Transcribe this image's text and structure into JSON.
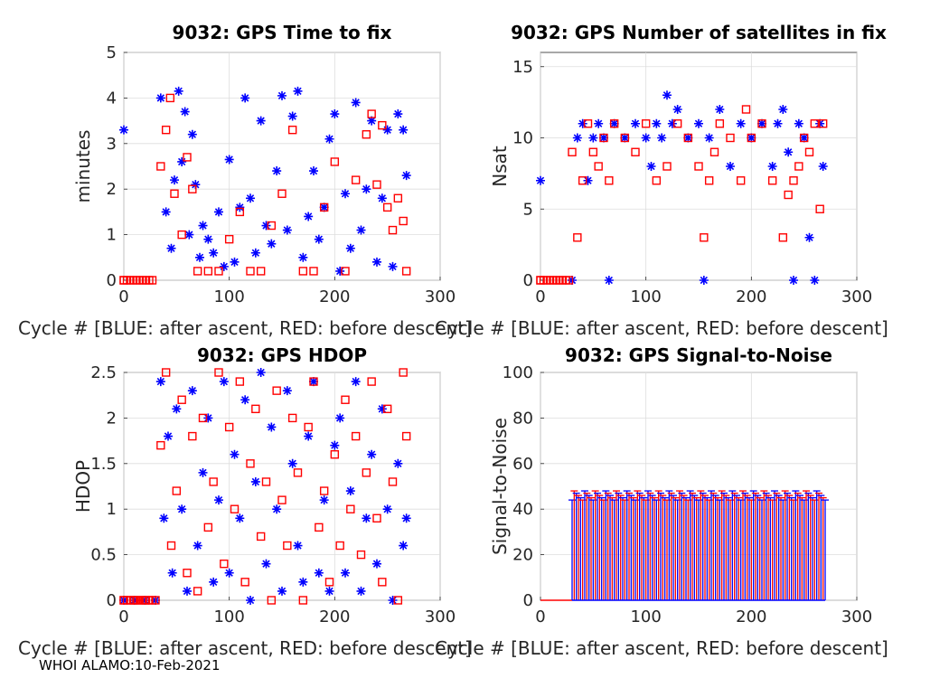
{
  "figure": {
    "footer": "WHOI ALAMO:10-Feb-2021",
    "colors": {
      "after_ascent": "#0000ff",
      "before_descent": "#ff0000",
      "grid": "#dddddd",
      "axis": "#262626"
    }
  },
  "chart_data": [
    {
      "id": "ttf",
      "type": "scatter",
      "title": "9032: GPS Time to fix",
      "xlabel": "Cycle #  [BLUE: after ascent, RED: before descent]",
      "ylabel": "minutes",
      "xlim": [
        0,
        300
      ],
      "ylim": [
        0,
        5
      ],
      "xticks": [
        0,
        100,
        200,
        300
      ],
      "yticks": [
        0,
        1,
        2,
        3,
        4,
        5
      ],
      "ytick_labels": [
        "0",
        "1",
        "2",
        "3",
        "4",
        "5"
      ],
      "series": [
        {
          "name": "after ascent",
          "marker": "asterisk",
          "color": "#0000ff",
          "x": [
            0,
            35,
            40,
            45,
            48,
            52,
            55,
            58,
            62,
            65,
            68,
            72,
            75,
            80,
            85,
            90,
            95,
            100,
            105,
            110,
            115,
            120,
            125,
            130,
            135,
            140,
            145,
            150,
            155,
            160,
            165,
            170,
            175,
            180,
            185,
            190,
            195,
            200,
            205,
            210,
            215,
            220,
            225,
            230,
            235,
            240,
            245,
            250,
            255,
            260,
            265,
            268
          ],
          "y": [
            3.3,
            4.0,
            1.5,
            0.7,
            2.2,
            4.15,
            2.6,
            3.7,
            1.0,
            3.2,
            2.1,
            0.5,
            1.2,
            0.9,
            0.6,
            1.5,
            0.3,
            2.65,
            0.4,
            1.6,
            4.0,
            1.8,
            0.6,
            3.5,
            1.2,
            0.8,
            2.4,
            4.05,
            1.1,
            3.6,
            4.15,
            0.5,
            1.4,
            2.4,
            0.9,
            1.6,
            3.1,
            3.65,
            0.2,
            1.9,
            0.7,
            3.9,
            1.1,
            2.0,
            3.5,
            0.4,
            1.8,
            3.3,
            0.3,
            3.65,
            3.3,
            2.3
          ]
        },
        {
          "name": "before descent",
          "marker": "square",
          "color": "#ff0000",
          "x": [
            0,
            35,
            40,
            44,
            48,
            55,
            60,
            65,
            70,
            80,
            90,
            100,
            110,
            120,
            130,
            140,
            150,
            160,
            170,
            180,
            190,
            200,
            210,
            220,
            230,
            235,
            240,
            245,
            250,
            255,
            260,
            265,
            268
          ],
          "y": [
            0.0,
            2.5,
            3.3,
            4.0,
            1.9,
            1.0,
            2.7,
            2.0,
            0.2,
            0.2,
            0.2,
            0.9,
            1.5,
            0.2,
            0.2,
            1.2,
            1.9,
            3.3,
            0.2,
            0.2,
            1.6,
            2.6,
            0.2,
            2.2,
            3.2,
            3.65,
            2.1,
            3.4,
            1.6,
            1.1,
            1.8,
            1.3,
            0.2
          ]
        }
      ]
    },
    {
      "id": "nsat",
      "type": "scatter",
      "title": "9032: GPS Number of satellites in fix",
      "xlabel": "Cycle #  [BLUE: after ascent, RED: before descent]",
      "ylabel": "Nsat",
      "xlim": [
        0,
        300
      ],
      "ylim": [
        0,
        16
      ],
      "xticks": [
        0,
        100,
        200,
        300
      ],
      "yticks": [
        0,
        5,
        10,
        15
      ],
      "ytick_labels": [
        "0",
        "5",
        "10",
        "15"
      ],
      "series": [
        {
          "name": "after ascent",
          "marker": "asterisk",
          "color": "#0000ff",
          "x": [
            0,
            30,
            35,
            40,
            45,
            50,
            55,
            60,
            65,
            70,
            80,
            90,
            100,
            105,
            110,
            115,
            120,
            125,
            130,
            140,
            150,
            155,
            160,
            170,
            180,
            190,
            200,
            210,
            220,
            225,
            230,
            235,
            240,
            245,
            250,
            255,
            260,
            265,
            268
          ],
          "y": [
            7,
            0,
            10,
            11,
            7,
            10,
            11,
            10,
            0,
            11,
            10,
            11,
            10,
            8,
            11,
            10,
            13,
            11,
            12,
            10,
            11,
            0,
            10,
            12,
            8,
            11,
            10,
            11,
            8,
            11,
            12,
            9,
            0,
            11,
            10,
            3,
            0,
            11,
            8
          ]
        },
        {
          "name": "before descent",
          "marker": "square",
          "color": "#ff0000",
          "x": [
            0,
            30,
            35,
            40,
            45,
            50,
            55,
            60,
            65,
            70,
            80,
            90,
            100,
            110,
            120,
            130,
            140,
            150,
            155,
            160,
            165,
            170,
            180,
            190,
            195,
            200,
            210,
            220,
            230,
            235,
            240,
            245,
            250,
            255,
            260,
            265,
            268
          ],
          "y": [
            0,
            9,
            3,
            7,
            11,
            9,
            8,
            10,
            7,
            11,
            10,
            9,
            11,
            7,
            8,
            11,
            10,
            8,
            3,
            7,
            9,
            11,
            10,
            7,
            12,
            10,
            11,
            7,
            3,
            6,
            7,
            8,
            10,
            9,
            11,
            5,
            11
          ]
        }
      ]
    },
    {
      "id": "hdop",
      "type": "scatter",
      "title": "9032: GPS HDOP",
      "xlabel": "Cycle #  [BLUE: after ascent, RED: before descent]",
      "ylabel": "HDOP",
      "xlim": [
        0,
        300
      ],
      "ylim": [
        0,
        2.5
      ],
      "xticks": [
        0,
        100,
        200,
        300
      ],
      "yticks": [
        0,
        0.5,
        1,
        1.5,
        2,
        2.5
      ],
      "ytick_labels": [
        "0",
        "0.5",
        "1",
        "1.5",
        "2",
        "2.5"
      ],
      "series": [
        {
          "name": "after ascent",
          "marker": "asterisk",
          "color": "#0000ff",
          "x": [
            0,
            10,
            20,
            30,
            35,
            38,
            42,
            46,
            50,
            55,
            60,
            65,
            70,
            75,
            80,
            85,
            90,
            95,
            100,
            105,
            110,
            115,
            120,
            125,
            130,
            135,
            140,
            145,
            150,
            155,
            160,
            165,
            170,
            175,
            180,
            185,
            190,
            195,
            200,
            205,
            210,
            215,
            220,
            225,
            230,
            235,
            240,
            245,
            250,
            255,
            260,
            265,
            268
          ],
          "y": [
            0.0,
            0.0,
            0.0,
            0.0,
            2.4,
            0.9,
            1.8,
            0.3,
            2.1,
            1.0,
            0.1,
            2.3,
            0.6,
            1.4,
            2.0,
            0.2,
            1.1,
            2.4,
            0.3,
            1.6,
            0.9,
            2.2,
            0.0,
            1.3,
            2.5,
            0.4,
            1.9,
            1.0,
            0.1,
            2.3,
            1.5,
            0.6,
            0.2,
            1.8,
            2.4,
            0.3,
            1.1,
            0.1,
            1.7,
            2.0,
            0.3,
            1.2,
            2.4,
            0.1,
            0.9,
            1.6,
            0.4,
            2.1,
            1.0,
            0.0,
            1.5,
            0.6,
            0.9
          ]
        },
        {
          "name": "before descent",
          "marker": "square",
          "color": "#ff0000",
          "x": [
            0,
            10,
            20,
            30,
            35,
            40,
            45,
            50,
            55,
            60,
            65,
            70,
            75,
            80,
            85,
            90,
            95,
            100,
            105,
            110,
            115,
            120,
            125,
            130,
            135,
            140,
            145,
            150,
            155,
            160,
            165,
            170,
            175,
            180,
            185,
            190,
            195,
            200,
            205,
            210,
            215,
            220,
            225,
            230,
            235,
            240,
            245,
            250,
            255,
            260,
            265,
            268
          ],
          "y": [
            0.0,
            0.0,
            0.0,
            0.0,
            1.7,
            2.5,
            0.6,
            1.2,
            2.2,
            0.3,
            1.8,
            0.1,
            2.0,
            0.8,
            1.3,
            2.5,
            0.4,
            1.9,
            1.0,
            2.4,
            0.2,
            1.5,
            2.1,
            0.7,
            1.3,
            0.0,
            2.3,
            1.1,
            0.6,
            2.0,
            1.4,
            0.0,
            1.9,
            2.4,
            0.8,
            1.2,
            0.2,
            1.6,
            0.6,
            2.2,
            1.0,
            1.8,
            0.5,
            1.4,
            2.4,
            0.9,
            0.2,
            2.1,
            1.3,
            0.0,
            2.5,
            1.8
          ]
        }
      ]
    },
    {
      "id": "snr",
      "type": "errorbar",
      "title": "9032: GPS Signal-to-Noise",
      "xlabel": "Cycle #  [BLUE: after ascent, RED: before descent]",
      "ylabel": "Signal-to-Noise",
      "xlim": [
        0,
        300
      ],
      "ylim": [
        0,
        100
      ],
      "xticks": [
        0,
        100,
        200,
        300
      ],
      "yticks": [
        0,
        20,
        40,
        60,
        80,
        100
      ],
      "ytick_labels": [
        "0",
        "20",
        "40",
        "60",
        "80",
        "100"
      ],
      "cycle_start": 30,
      "cycle_end": 270,
      "bar_upper": 46,
      "series": [
        {
          "name": "after ascent",
          "color": "#0000ff"
        },
        {
          "name": "before descent",
          "color": "#ff0000"
        }
      ]
    }
  ]
}
